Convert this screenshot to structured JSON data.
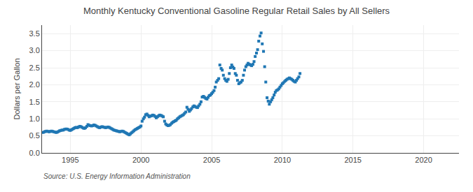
{
  "chart_data": {
    "type": "scatter",
    "title": "Monthly Kentucky Conventional Gasoline Regular Retail Sales by All Sellers",
    "y_label": "Dollars per Gallon",
    "annotations": [
      "Source: U.S. Energy Information Administration"
    ],
    "marker": "square",
    "grid": true,
    "xlim": [
      1993.0,
      2022.5
    ],
    "ylim": [
      0.0,
      3.75
    ],
    "xticks": [
      1995,
      2000,
      2005,
      2010,
      2015,
      2020
    ],
    "yticks": [
      {
        "value": 0.0,
        "label": "0.0"
      },
      0.5,
      {
        "value": 1.0,
        "label": "1.0"
      },
      1.5,
      {
        "value": 2.0,
        "label": "2.0"
      },
      2.5,
      {
        "value": 3.0,
        "label": "3.0"
      },
      3.5
    ],
    "x": [
      1993.08,
      1993.17,
      1993.25,
      1993.33,
      1993.42,
      1993.5,
      1993.58,
      1993.67,
      1993.75,
      1993.83,
      1993.92,
      1994.0,
      1994.08,
      1994.17,
      1994.25,
      1994.33,
      1994.42,
      1994.5,
      1994.58,
      1994.67,
      1994.75,
      1994.83,
      1994.92,
      1995.0,
      1995.08,
      1995.17,
      1995.25,
      1995.33,
      1995.42,
      1995.5,
      1995.58,
      1995.67,
      1995.75,
      1995.83,
      1995.92,
      1996.0,
      1996.08,
      1996.17,
      1996.25,
      1996.33,
      1996.42,
      1996.5,
      1996.58,
      1996.67,
      1996.75,
      1996.83,
      1996.92,
      1997.0,
      1997.08,
      1997.17,
      1997.25,
      1997.33,
      1997.42,
      1997.5,
      1997.58,
      1997.67,
      1997.75,
      1997.83,
      1997.92,
      1998.0,
      1998.08,
      1998.17,
      1998.25,
      1998.33,
      1998.42,
      1998.5,
      1998.58,
      1998.67,
      1998.75,
      1998.83,
      1998.92,
      1999.0,
      1999.08,
      1999.17,
      1999.25,
      1999.33,
      1999.42,
      1999.5,
      1999.58,
      1999.67,
      1999.75,
      1999.83,
      1999.92,
      2000.0,
      2000.08,
      2000.17,
      2000.25,
      2000.33,
      2000.42,
      2000.5,
      2000.58,
      2000.67,
      2000.75,
      2000.83,
      2000.92,
      2001.0,
      2001.08,
      2001.17,
      2001.25,
      2001.33,
      2001.42,
      2001.5,
      2001.58,
      2001.67,
      2001.75,
      2001.83,
      2001.92,
      2002.0,
      2002.08,
      2002.17,
      2002.25,
      2002.33,
      2002.42,
      2002.5,
      2002.58,
      2002.67,
      2002.75,
      2002.83,
      2002.92,
      2003.0,
      2003.08,
      2003.17,
      2003.25,
      2003.33,
      2003.42,
      2003.5,
      2003.58,
      2003.67,
      2003.75,
      2003.83,
      2003.92,
      2004.0,
      2004.08,
      2004.17,
      2004.25,
      2004.33,
      2004.42,
      2004.5,
      2004.58,
      2004.67,
      2004.75,
      2004.83,
      2004.92,
      2005.0,
      2005.08,
      2005.17,
      2005.25,
      2005.33,
      2005.42,
      2005.5,
      2005.58,
      2005.67,
      2005.75,
      2005.83,
      2005.92,
      2006.0,
      2006.08,
      2006.17,
      2006.25,
      2006.33,
      2006.42,
      2006.5,
      2006.58,
      2006.67,
      2006.75,
      2006.83,
      2006.92,
      2007.0,
      2007.08,
      2007.17,
      2007.25,
      2007.33,
      2007.42,
      2007.5,
      2007.58,
      2007.67,
      2007.75,
      2007.83,
      2007.92,
      2008.0,
      2008.08,
      2008.17,
      2008.25,
      2008.33,
      2008.42,
      2008.5,
      2008.58,
      2008.67,
      2008.75,
      2008.83,
      2008.92,
      2009.0,
      2009.08,
      2009.17,
      2009.25,
      2009.33,
      2009.42,
      2009.5,
      2009.58,
      2009.67,
      2009.75,
      2009.83,
      2009.92,
      2010.0,
      2010.08,
      2010.17,
      2010.25,
      2010.33,
      2010.42,
      2010.5,
      2010.58,
      2010.67,
      2010.75,
      2010.83,
      2010.92,
      2011.0,
      2011.08,
      2011.17,
      2011.25
    ],
    "values": [
      0.6,
      0.62,
      0.63,
      0.64,
      0.63,
      0.62,
      0.63,
      0.64,
      0.63,
      0.62,
      0.61,
      0.6,
      0.61,
      0.63,
      0.65,
      0.66,
      0.67,
      0.67,
      0.69,
      0.7,
      0.7,
      0.69,
      0.67,
      0.66,
      0.68,
      0.7,
      0.72,
      0.74,
      0.75,
      0.74,
      0.76,
      0.78,
      0.77,
      0.75,
      0.73,
      0.72,
      0.74,
      0.78,
      0.83,
      0.81,
      0.8,
      0.79,
      0.8,
      0.82,
      0.81,
      0.79,
      0.77,
      0.75,
      0.74,
      0.76,
      0.77,
      0.76,
      0.75,
      0.74,
      0.75,
      0.76,
      0.75,
      0.73,
      0.71,
      0.69,
      0.67,
      0.66,
      0.65,
      0.64,
      0.63,
      0.62,
      0.63,
      0.64,
      0.63,
      0.61,
      0.59,
      0.57,
      0.55,
      0.53,
      0.56,
      0.59,
      0.62,
      0.65,
      0.68,
      0.7,
      0.72,
      0.74,
      0.76,
      0.79,
      0.93,
      1.0,
      1.05,
      1.12,
      1.14,
      1.1,
      1.06,
      1.08,
      1.09,
      1.11,
      1.1,
      1.07,
      1.03,
      1.06,
      1.09,
      1.11,
      1.1,
      1.08,
      1.06,
      0.93,
      0.85,
      0.82,
      0.8,
      0.81,
      0.83,
      0.87,
      0.9,
      0.92,
      0.94,
      0.96,
      1.0,
      1.03,
      1.06,
      1.08,
      1.1,
      1.12,
      1.16,
      1.2,
      1.34,
      1.28,
      1.22,
      1.26,
      1.3,
      1.35,
      1.38,
      1.36,
      1.34,
      1.33,
      1.38,
      1.43,
      1.5,
      1.64,
      1.66,
      1.63,
      1.6,
      1.58,
      1.63,
      1.68,
      1.7,
      1.74,
      1.78,
      1.83,
      1.93,
      2.08,
      2.13,
      2.18,
      2.58,
      2.48,
      2.43,
      2.28,
      2.18,
      2.13,
      2.1,
      2.16,
      2.33,
      2.5,
      2.58,
      2.52,
      2.48,
      2.33,
      2.28,
      2.13,
      2.03,
      2.06,
      2.08,
      2.13,
      2.28,
      2.43,
      2.53,
      2.58,
      2.63,
      2.6,
      2.58,
      2.56,
      2.6,
      2.68,
      2.83,
      2.93,
      3.03,
      3.28,
      3.43,
      3.52,
      3.2,
      2.98,
      2.53,
      2.08,
      1.62,
      1.52,
      1.43,
      1.5,
      1.56,
      1.62,
      1.7,
      1.78,
      1.83,
      1.85,
      1.88,
      1.93,
      1.98,
      2.03,
      2.06,
      2.1,
      2.13,
      2.16,
      2.18,
      2.2,
      2.18,
      2.16,
      2.13,
      2.1,
      2.08,
      2.13,
      2.18,
      2.23,
      2.33
    ]
  }
}
